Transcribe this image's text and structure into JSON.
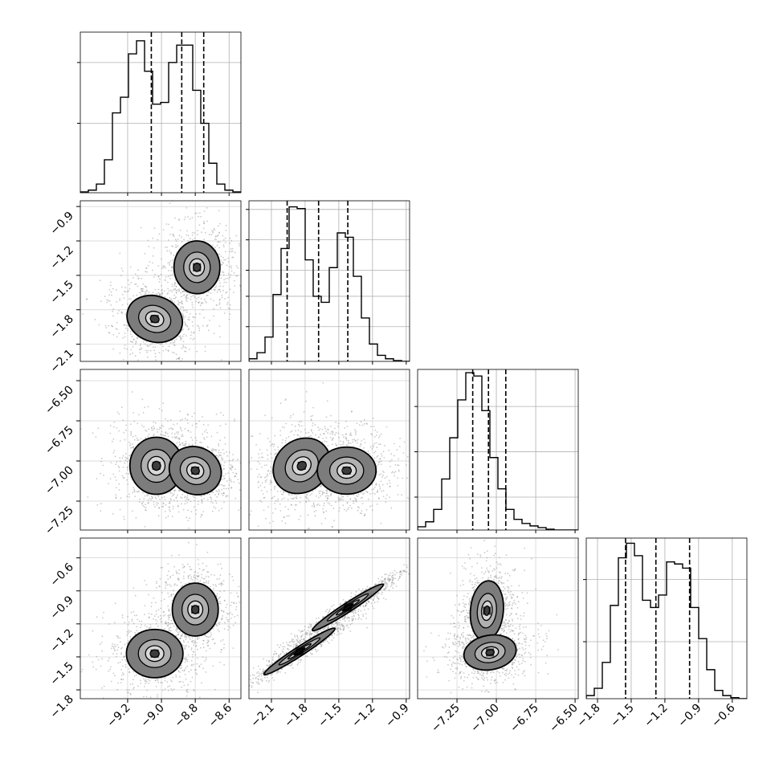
{
  "chart_data": {
    "type": "corner",
    "grid": true,
    "params": [
      {
        "hist": {
          "lo": -9.48,
          "hi": -8.53,
          "counts": [
            1,
            3,
            10,
            38,
            92,
            110,
            160,
            175,
            140,
            102,
            104,
            150,
            170,
            170,
            118,
            80,
            34,
            10,
            3,
            1
          ],
          "ylim": [
            0,
            185
          ]
        },
        "quantiles": [
          -9.06,
          -8.88,
          -8.75
        ],
        "ticks": [
          -9.2,
          -9.0,
          -8.8,
          -8.6
        ],
        "tick_labels": [
          "−9.2",
          "−9.0",
          "−8.8",
          "−8.6"
        ],
        "y_grid": [
          80,
          150
        ]
      },
      {
        "hist": {
          "lo": -2.3,
          "hi": -0.87,
          "counts": [
            3,
            10,
            28,
            77,
            130,
            178,
            176,
            117,
            75,
            68,
            108,
            148,
            143,
            98,
            50,
            20,
            7,
            3,
            1,
            0
          ],
          "ylim": [
            0,
            185
          ]
        },
        "quantiles": [
          -1.96,
          -1.68,
          -1.42
        ],
        "ticks": [
          -2.1,
          -1.8,
          -1.5,
          -1.2,
          -0.9
        ],
        "tick_labels": [
          "−2.1",
          "−1.8",
          "−1.5",
          "−1.2",
          "−0.9"
        ],
        "y_grid": [
          40,
          75,
          105,
          140,
          175
        ]
      },
      {
        "hist": {
          "lo": -7.5,
          "hi": -6.48,
          "counts": [
            4,
            10,
            25,
            62,
            112,
            158,
            191,
            187,
            145,
            88,
            50,
            25,
            13,
            8,
            5,
            3,
            1,
            0,
            0,
            0
          ],
          "ylim": [
            0,
            195
          ]
        },
        "quantiles": [
          -7.15,
          -7.05,
          -6.94
        ],
        "ticks": [
          -7.25,
          -7.0,
          -6.75,
          -6.5
        ],
        "tick_labels": [
          "−7.25",
          "−7.00",
          "−6.75",
          "−6.50"
        ],
        "y_grid": [
          40,
          95,
          150
        ]
      },
      {
        "hist": {
          "lo": -1.9,
          "hi": -0.47,
          "counts": [
            3,
            10,
            35,
            90,
            136,
            150,
            138,
            95,
            88,
            100,
            132,
            130,
            126,
            88,
            58,
            28,
            8,
            3,
            1,
            0
          ],
          "ylim": [
            0,
            155
          ]
        },
        "quantiles": [
          -1.55,
          -1.28,
          -0.98
        ],
        "ticks": [
          -1.8,
          -1.5,
          -1.2,
          -0.9,
          -0.6
        ],
        "tick_labels": [
          "−1.8",
          "−1.5",
          "−1.2",
          "−0.9",
          "−0.6"
        ],
        "y_grid": [
          55,
          115
        ]
      }
    ],
    "y_axes": {
      "1": {
        "range": [
          -2.25,
          -0.85
        ],
        "ticks": [
          -2.1,
          -1.8,
          -1.5,
          -1.2,
          -0.9
        ],
        "tick_labels": [
          "−2.1",
          "−1.8",
          "−1.5",
          "−1.2",
          "−0.9"
        ]
      },
      "2": {
        "range": [
          -7.43,
          -6.43
        ],
        "ticks": [
          -7.25,
          -7.0,
          -6.75,
          -6.5
        ],
        "tick_labels": [
          "−7.25",
          "−7.00",
          "−6.75",
          "−6.50"
        ]
      },
      "3": {
        "range": [
          -1.88,
          -0.42
        ],
        "ticks": [
          -1.8,
          -1.5,
          -1.2,
          -0.9,
          -0.6
        ],
        "tick_labels": [
          "−1.8",
          "−1.5",
          "−1.2",
          "−0.9",
          "−0.6"
        ]
      }
    },
    "modes": [
      {
        "p0": -9.06,
        "p1": -1.87,
        "p2": -7.05,
        "p3": -1.47
      },
      {
        "p0": -8.79,
        "p1": -1.43,
        "p2": -7.07,
        "p3": -1.05
      }
    ],
    "pair_panels": [
      {
        "row": 1,
        "col": 0,
        "blobs": [
          {
            "cx": -9.04,
            "cy": -1.88,
            "rx": 0.16,
            "ry": 0.19,
            "rot": 20
          },
          {
            "cx": -8.79,
            "cy": -1.43,
            "rx": 0.13,
            "ry": 0.22,
            "rot": 0
          }
        ]
      },
      {
        "row": 2,
        "col": 0,
        "blobs": [
          {
            "cx": -9.03,
            "cy": -7.03,
            "rx": 0.15,
            "ry": 0.17,
            "rot": 0
          },
          {
            "cx": -8.8,
            "cy": -7.06,
            "rx": 0.15,
            "ry": 0.14,
            "rot": 25
          }
        ]
      },
      {
        "row": 2,
        "col": 1,
        "blobs": [
          {
            "cx": -1.83,
            "cy": -7.03,
            "rx": 0.22,
            "ry": 0.18,
            "rot": 50
          },
          {
            "cx": -1.43,
            "cy": -7.06,
            "rx": 0.25,
            "ry": 0.14,
            "rot": 0
          }
        ]
      },
      {
        "row": 3,
        "col": 0,
        "blobs": [
          {
            "cx": -9.04,
            "cy": -1.47,
            "rx": 0.16,
            "ry": 0.21,
            "rot": 0
          },
          {
            "cx": -8.8,
            "cy": -1.07,
            "rx": 0.13,
            "ry": 0.23,
            "rot": 0
          }
        ]
      },
      {
        "row": 3,
        "col": 1,
        "blobs": [
          {
            "cx": -1.85,
            "cy": -1.45,
            "rx": 0.36,
            "ry": 0.04,
            "rot": -33
          },
          {
            "cx": -1.42,
            "cy": -1.05,
            "rx": 0.36,
            "ry": 0.04,
            "rot": -33
          }
        ]
      },
      {
        "row": 3,
        "col": 2,
        "blobs": [
          {
            "cx": -7.06,
            "cy": -1.08,
            "rx": 0.1,
            "ry": 0.26,
            "rot": 5
          },
          {
            "cx": -7.04,
            "cy": -1.46,
            "rx": 0.16,
            "ry": 0.15,
            "rot": -10
          }
        ]
      }
    ]
  }
}
